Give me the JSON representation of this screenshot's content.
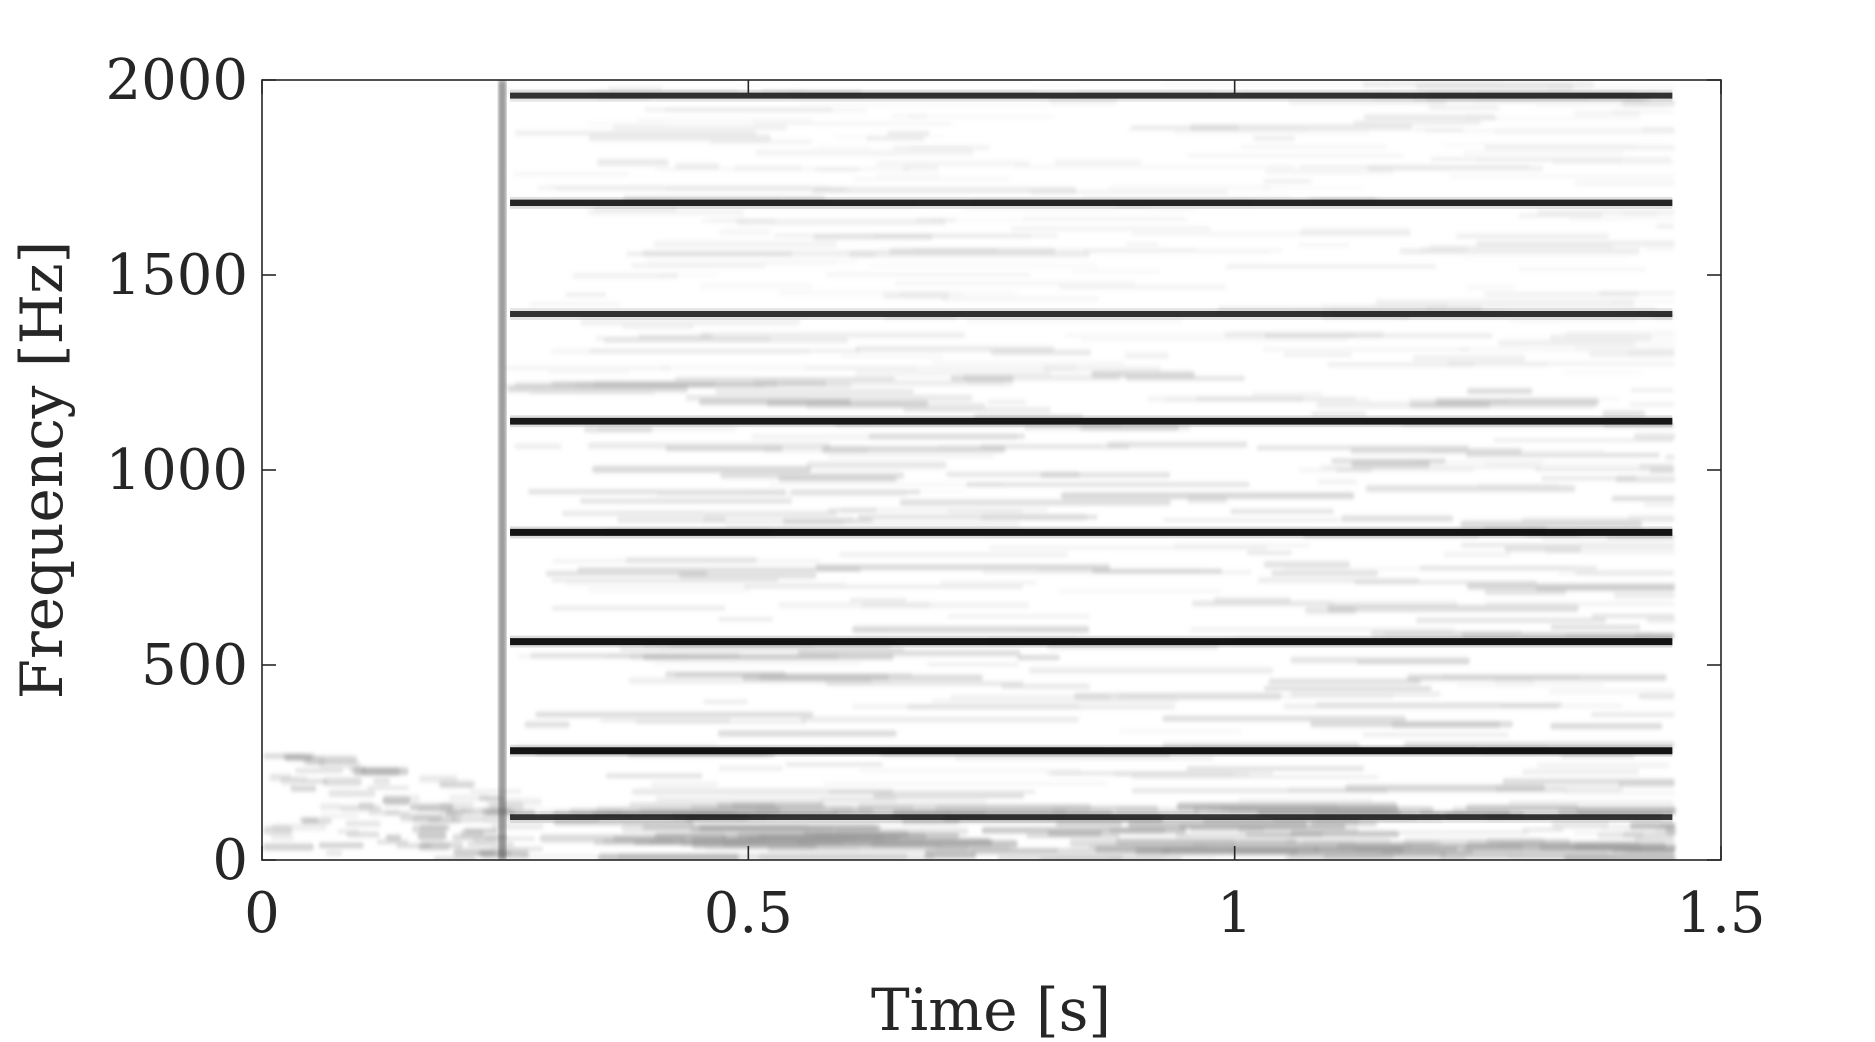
{
  "chart_data": {
    "type": "heatmap",
    "title": "",
    "xlabel": "Time [s]",
    "ylabel": "Frequency [Hz]",
    "xlim": [
      0,
      1.5
    ],
    "ylim": [
      0,
      2000
    ],
    "x_ticks": [
      {
        "value": 0,
        "label": "0"
      },
      {
        "value": 0.5,
        "label": "0.5"
      },
      {
        "value": 1,
        "label": "1"
      },
      {
        "value": 1.5,
        "label": "1.5"
      }
    ],
    "y_ticks": [
      {
        "value": 0,
        "label": "0"
      },
      {
        "value": 500,
        "label": "500"
      },
      {
        "value": 1000,
        "label": "1000"
      },
      {
        "value": 1500,
        "label": "1500"
      },
      {
        "value": 2000,
        "label": "2000"
      }
    ],
    "colormap": "grayscale (dark = high magnitude)",
    "grid": false,
    "onset_time": 0.245,
    "data_end_time": 1.45,
    "harmonics": [
      {
        "frequency": 1960,
        "strength": 0.75,
        "t_start": 0.255,
        "t_end": 1.45
      },
      {
        "frequency": 1685,
        "strength": 0.85,
        "t_start": 0.255,
        "t_end": 1.45
      },
      {
        "frequency": 1400,
        "strength": 0.75,
        "t_start": 0.255,
        "t_end": 1.45
      },
      {
        "frequency": 1125,
        "strength": 0.95,
        "t_start": 0.255,
        "t_end": 1.45
      },
      {
        "frequency": 840,
        "strength": 1.0,
        "t_start": 0.255,
        "t_end": 1.45
      },
      {
        "frequency": 560,
        "strength": 1.0,
        "t_start": 0.255,
        "t_end": 1.45
      },
      {
        "frequency": 280,
        "strength": 1.0,
        "t_start": 0.255,
        "t_end": 1.45
      },
      {
        "frequency": 110,
        "strength": 0.7,
        "t_start": 0.255,
        "t_end": 1.45
      }
    ]
  },
  "colors": {
    "axis": "#262626",
    "harmonic": "#0a0a0a",
    "texture": "#9a9a9a",
    "background": "#ffffff"
  }
}
